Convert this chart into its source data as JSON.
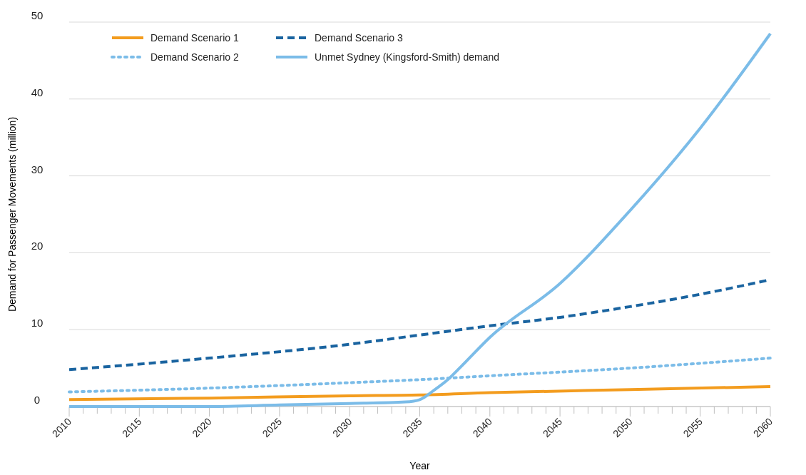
{
  "chart_data": {
    "type": "line",
    "xlabel": "Year",
    "ylabel": "Demand for Passenger Movements (million)",
    "xlim": [
      2010,
      2060
    ],
    "ylim": [
      0,
      50
    ],
    "xticks": [
      2010,
      {
        "value": 2011,
        "label": null
      },
      {
        "value": 2012,
        "label": null
      },
      {
        "value": 2013,
        "label": null
      },
      {
        "value": 2014,
        "label": null
      },
      2015,
      {
        "value": 2016,
        "label": null
      },
      {
        "value": 2017,
        "label": null
      },
      {
        "value": 2018,
        "label": null
      },
      {
        "value": 2019,
        "label": null
      },
      2020,
      {
        "value": 2021,
        "label": null
      },
      {
        "value": 2022,
        "label": null
      },
      {
        "value": 2023,
        "label": null
      },
      {
        "value": 2024,
        "label": null
      },
      2025,
      {
        "value": 2026,
        "label": null
      },
      {
        "value": 2027,
        "label": null
      },
      {
        "value": 2028,
        "label": null
      },
      {
        "value": 2029,
        "label": null
      },
      2030,
      {
        "value": 2031,
        "label": null
      },
      {
        "value": 2032,
        "label": null
      },
      {
        "value": 2033,
        "label": null
      },
      {
        "value": 2034,
        "label": null
      },
      2035,
      {
        "value": 2036,
        "label": null
      },
      {
        "value": 2037,
        "label": null
      },
      {
        "value": 2038,
        "label": null
      },
      {
        "value": 2039,
        "label": null
      },
      2040,
      {
        "value": 2041,
        "label": null
      },
      {
        "value": 2042,
        "label": null
      },
      {
        "value": 2043,
        "label": null
      },
      {
        "value": 2044,
        "label": null
      },
      2045,
      {
        "value": 2046,
        "label": null
      },
      {
        "value": 2047,
        "label": null
      },
      {
        "value": 2048,
        "label": null
      },
      {
        "value": 2049,
        "label": null
      },
      2050,
      {
        "value": 2051,
        "label": null
      },
      {
        "value": 2052,
        "label": null
      },
      {
        "value": 2053,
        "label": null
      },
      {
        "value": 2054,
        "label": null
      },
      2055,
      {
        "value": 2056,
        "label": null
      },
      {
        "value": 2057,
        "label": null
      },
      {
        "value": 2058,
        "label": null
      },
      {
        "value": 2059,
        "label": null
      },
      2060
    ],
    "yticks": [
      0,
      10,
      20,
      30,
      40,
      50
    ],
    "grid": "y",
    "legend": "top left",
    "marker": "none",
    "series": [
      {
        "name": "Demand Scenario 1",
        "color": "#f39c1e",
        "line_style": "solid",
        "x": [
          2010,
          2020,
          2030,
          2035,
          2040,
          2050,
          2060
        ],
        "values": [
          0.9,
          1.1,
          1.4,
          1.5,
          1.8,
          2.2,
          2.6
        ]
      },
      {
        "name": "Demand Scenario 2",
        "color": "#7bbce8",
        "line_style": "dotted",
        "x": [
          2010,
          2020,
          2030,
          2035,
          2040,
          2050,
          2060
        ],
        "values": [
          1.9,
          2.4,
          3.1,
          3.5,
          4.0,
          5.0,
          6.3
        ]
      },
      {
        "name": "Demand Scenario 3",
        "color": "#1a64a0",
        "line_style": "dashed",
        "x": [
          2010,
          2020,
          2030,
          2035,
          2040,
          2045,
          2050,
          2055,
          2060
        ],
        "values": [
          4.8,
          6.3,
          8.1,
          9.3,
          10.5,
          11.6,
          13.0,
          14.6,
          16.5
        ]
      },
      {
        "name": "Unmet Sydney (Kingsford-Smith) demand",
        "color": "#7bbce8",
        "line_style": "solid",
        "x": [
          2010,
          2020,
          2025,
          2030,
          2034,
          2035,
          2036,
          2037,
          2038,
          2040,
          2045,
          2050,
          2055,
          2060
        ],
        "values": [
          0,
          0,
          0.2,
          0.4,
          0.6,
          0.9,
          2.1,
          3.5,
          5.3,
          9,
          16,
          25.5,
          36.2,
          48.5
        ]
      }
    ]
  }
}
